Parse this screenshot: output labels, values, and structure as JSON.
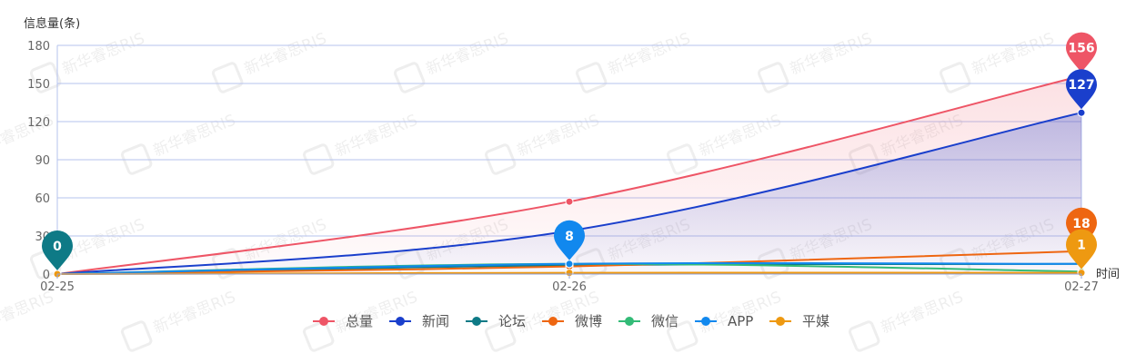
{
  "chart_data": {
    "type": "line",
    "ylabel": "信息量(条)",
    "xlabel": "时间",
    "categories": [
      "02-25",
      "02-26",
      "02-27"
    ],
    "ylim": [
      0,
      180
    ],
    "yticks": [
      0,
      30,
      60,
      90,
      120,
      150,
      180
    ],
    "grid": true,
    "legend_position": "bottom-center",
    "series": [
      {
        "name": "总量",
        "color": "#ee5566",
        "values": [
          0,
          57,
          156
        ],
        "area": true
      },
      {
        "name": "新闻",
        "color": "#1a3fcc",
        "values": [
          0,
          34,
          127
        ],
        "area": true
      },
      {
        "name": "论坛",
        "color": "#0e7a86",
        "values": [
          0,
          7,
          8
        ]
      },
      {
        "name": "微博",
        "color": "#ee6611",
        "values": [
          0,
          6,
          18
        ]
      },
      {
        "name": "微信",
        "color": "#33bb77",
        "values": [
          0,
          8,
          2
        ]
      },
      {
        "name": "APP",
        "color": "#1188ee",
        "values": [
          0,
          8,
          8
        ]
      },
      {
        "name": "平媒",
        "color": "#ee9911",
        "values": [
          0,
          1,
          1
        ]
      }
    ],
    "pins": [
      {
        "series": "论坛",
        "category": "02-25",
        "value": 0,
        "label": "0"
      },
      {
        "series": "APP",
        "category": "02-26",
        "value": 8,
        "label": "8"
      },
      {
        "series": "总量",
        "category": "02-27",
        "value": 156,
        "label": "156"
      },
      {
        "series": "新闻",
        "category": "02-27",
        "value": 127,
        "label": "127"
      },
      {
        "series": "微博",
        "category": "02-27",
        "value": 18,
        "label": "18"
      },
      {
        "series": "平媒",
        "category": "02-27",
        "value": 1,
        "label": "1"
      }
    ],
    "watermark_text": "新华睿思RIS"
  }
}
